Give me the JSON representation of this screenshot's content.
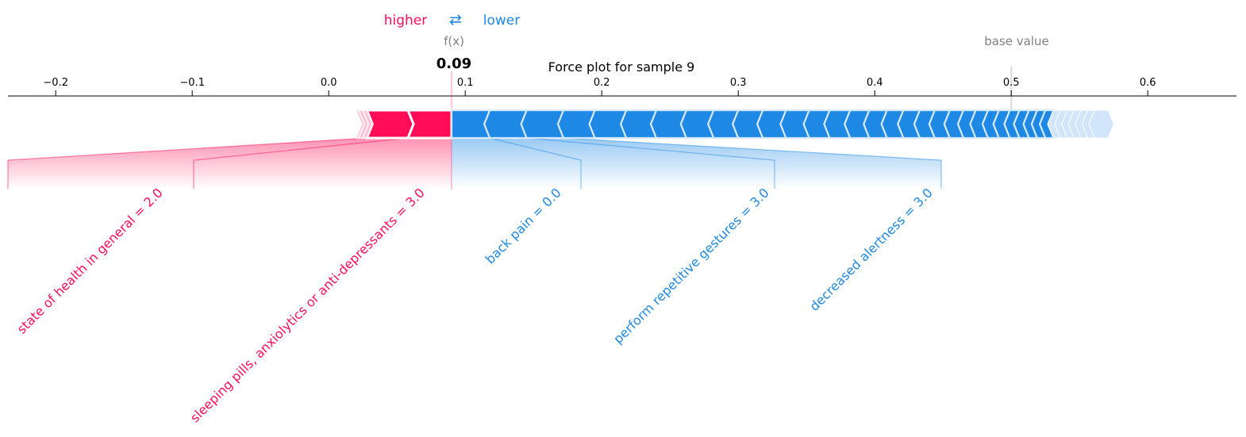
{
  "legend": {
    "higher_label": "higher",
    "arrows_glyph": "⇄",
    "lower_label": "lower"
  },
  "fx_label": "f(x)",
  "base_value_label": "base value",
  "title": "Force plot for sample 9",
  "colors": {
    "positive": "#ff0d57",
    "negative": "#1e88e5",
    "positive_light": "#ffc3d5",
    "negative_light": "#d1e6fa",
    "axis": "#000000",
    "base_line": "#e0e0e0",
    "muted_text": "#808080"
  },
  "chart_data": {
    "type": "force",
    "xlim": [
      -0.235,
      0.665
    ],
    "x_ticks": [
      -0.2,
      -0.1,
      0.0,
      0.1,
      0.2,
      0.3,
      0.4,
      0.5,
      0.6
    ],
    "x_tick_labels": [
      "−0.2",
      "−0.1",
      "0.0",
      "0.1",
      "0.2",
      "0.3",
      "0.4",
      "0.5",
      "0.6"
    ],
    "output_value": 0.09,
    "output_value_label": "0.09",
    "base_value": 0.5,
    "positive_segments": [
      {
        "start": 0.058,
        "end": 0.09,
        "label": "sleeping pills, anxiolytics or anti-depressants = 3.0"
      },
      {
        "start": 0.028,
        "end": 0.058,
        "label": "state of health in general = 2.0"
      },
      {
        "start": 0.025,
        "end": 0.028,
        "label": ""
      },
      {
        "start": 0.022,
        "end": 0.025,
        "label": ""
      },
      {
        "start": 0.02,
        "end": 0.022,
        "label": ""
      }
    ],
    "negative_segments": [
      {
        "start": 0.09,
        "end": 0.118,
        "label": "back pain = 0.0"
      },
      {
        "start": 0.118,
        "end": 0.145,
        "label": "perform repetitive gestures = 3.0"
      },
      {
        "start": 0.145,
        "end": 0.172,
        "label": "decreased alertness = 3.0"
      },
      {
        "start": 0.172,
        "end": 0.195,
        "label": ""
      },
      {
        "start": 0.195,
        "end": 0.218,
        "label": ""
      },
      {
        "start": 0.218,
        "end": 0.24,
        "label": ""
      },
      {
        "start": 0.24,
        "end": 0.262,
        "label": ""
      },
      {
        "start": 0.262,
        "end": 0.282,
        "label": ""
      },
      {
        "start": 0.282,
        "end": 0.3,
        "label": ""
      },
      {
        "start": 0.3,
        "end": 0.318,
        "label": ""
      },
      {
        "start": 0.318,
        "end": 0.335,
        "label": ""
      },
      {
        "start": 0.335,
        "end": 0.352,
        "label": ""
      },
      {
        "start": 0.352,
        "end": 0.367,
        "label": ""
      },
      {
        "start": 0.367,
        "end": 0.382,
        "label": ""
      },
      {
        "start": 0.382,
        "end": 0.396,
        "label": ""
      },
      {
        "start": 0.396,
        "end": 0.409,
        "label": ""
      },
      {
        "start": 0.409,
        "end": 0.421,
        "label": ""
      },
      {
        "start": 0.421,
        "end": 0.433,
        "label": ""
      },
      {
        "start": 0.433,
        "end": 0.444,
        "label": ""
      },
      {
        "start": 0.444,
        "end": 0.455,
        "label": ""
      },
      {
        "start": 0.455,
        "end": 0.465,
        "label": ""
      },
      {
        "start": 0.465,
        "end": 0.474,
        "label": ""
      },
      {
        "start": 0.474,
        "end": 0.483,
        "label": ""
      },
      {
        "start": 0.483,
        "end": 0.491,
        "label": ""
      },
      {
        "start": 0.491,
        "end": 0.499,
        "label": ""
      },
      {
        "start": 0.499,
        "end": 0.506,
        "label": ""
      },
      {
        "start": 0.506,
        "end": 0.513,
        "label": ""
      },
      {
        "start": 0.513,
        "end": 0.519,
        "label": ""
      },
      {
        "start": 0.519,
        "end": 0.525,
        "label": ""
      },
      {
        "start": 0.525,
        "end": 0.531,
        "label": ""
      },
      {
        "start": 0.531,
        "end": 0.536,
        "label": ""
      },
      {
        "start": 0.536,
        "end": 0.541,
        "label": ""
      },
      {
        "start": 0.541,
        "end": 0.546,
        "label": ""
      },
      {
        "start": 0.546,
        "end": 0.551,
        "label": ""
      },
      {
        "start": 0.551,
        "end": 0.556,
        "label": ""
      },
      {
        "start": 0.556,
        "end": 0.561,
        "label": ""
      },
      {
        "start": 0.561,
        "end": 0.571,
        "label": ""
      }
    ]
  }
}
